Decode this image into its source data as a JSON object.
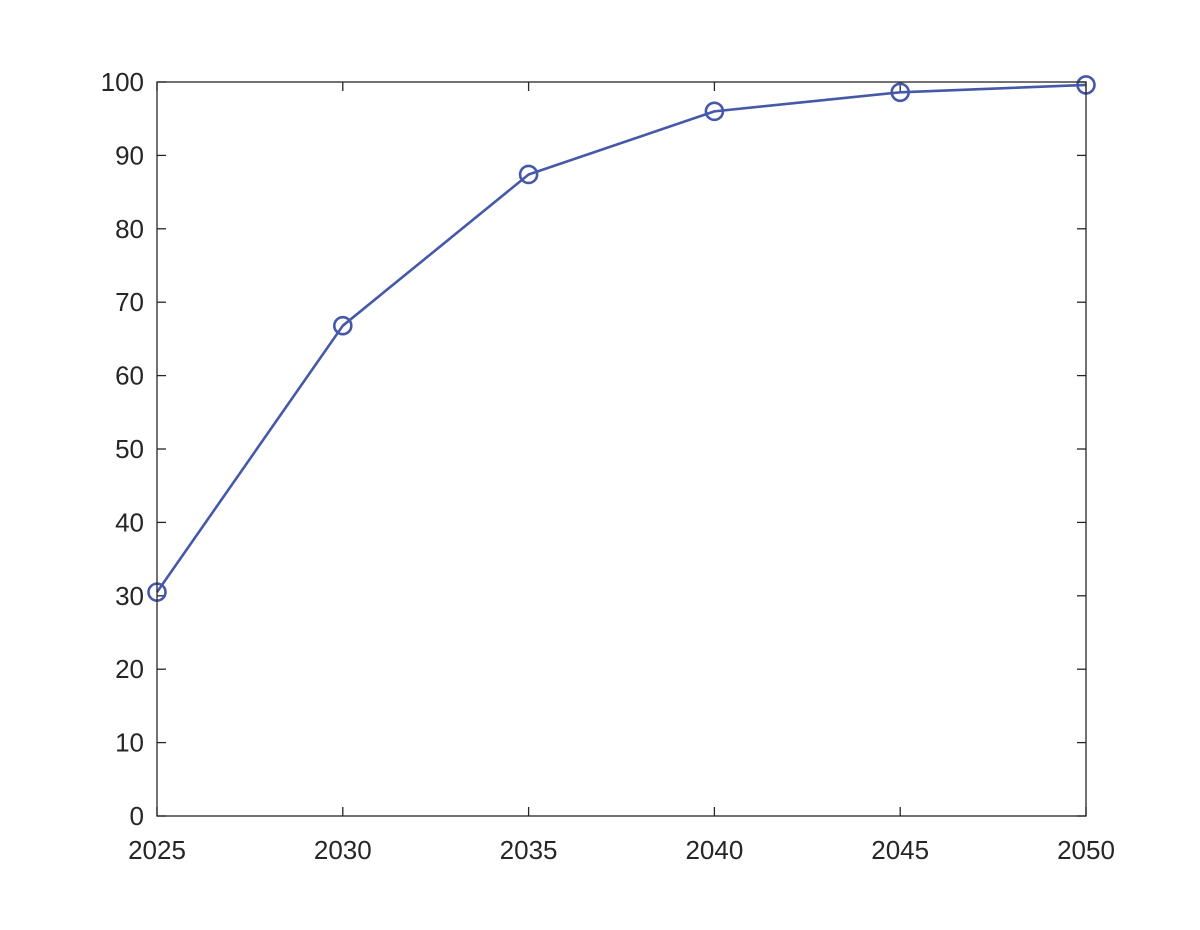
{
  "chart_data": {
    "type": "line",
    "title": "",
    "xlabel": "",
    "ylabel": "",
    "x": [
      2025,
      2030,
      2035,
      2040,
      2045,
      2050
    ],
    "xlim": [
      2025,
      2050
    ],
    "ylim": [
      0,
      100
    ],
    "xticks": [
      2025,
      2030,
      2035,
      2040,
      2045,
      2050
    ],
    "yticks": [
      0,
      10,
      20,
      30,
      40,
      50,
      60,
      70,
      80,
      90,
      100
    ],
    "grid": false,
    "legend": "none",
    "series": [
      {
        "values": [
          30.5,
          66.8,
          87.4,
          96.0,
          98.6,
          99.6
        ],
        "color": "#4658a8",
        "marker": "circle",
        "line_style": "solid"
      }
    ]
  }
}
